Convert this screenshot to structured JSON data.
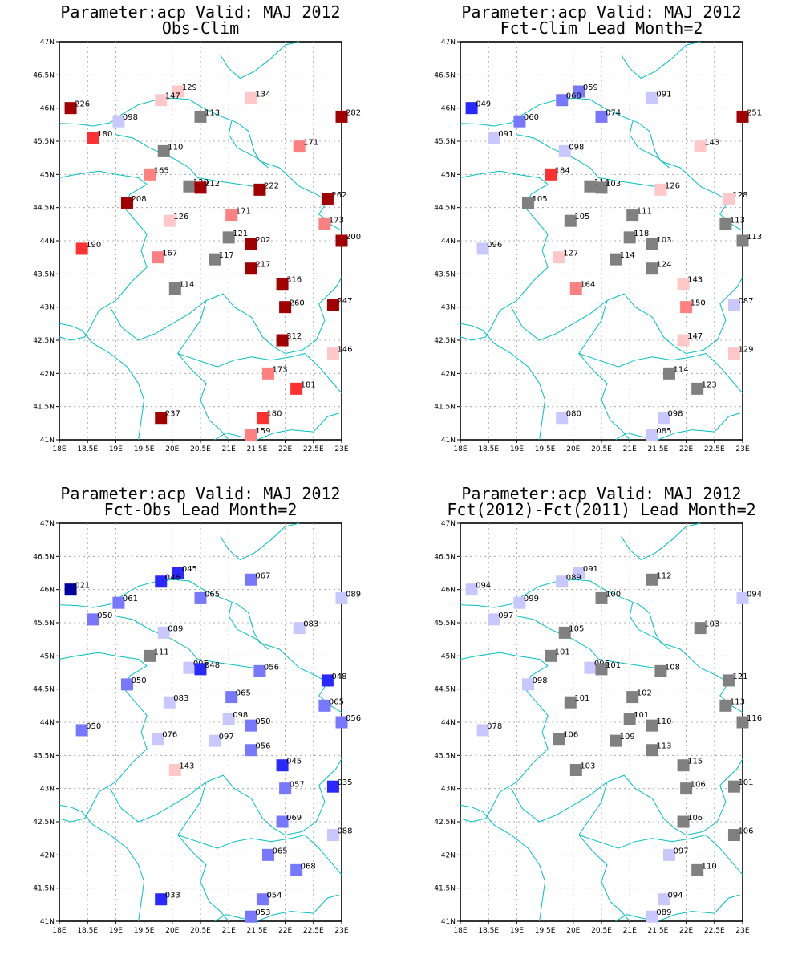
{
  "x_ticks": [
    "18E",
    "18.5E",
    "19E",
    "19.5E",
    "20E",
    "20.5E",
    "21E",
    "21.5E",
    "22E",
    "22.5E",
    "23E"
  ],
  "y_ticks": [
    "41N",
    "41.5N",
    "42N",
    "42.5N",
    "43N",
    "43.5N",
    "44N",
    "44.5N",
    "45N",
    "45.5N",
    "46N",
    "46.5N",
    "47N"
  ],
  "colors": {
    "dark_red": "#a00000",
    "red": "#ff3030",
    "salmon": "#ff8080",
    "pink": "#ffc8c8",
    "gray": "#808080",
    "light_blue": "#c8c8ff",
    "med_blue": "#7878ff",
    "blue": "#2828ff",
    "dark_blue": "#0000a0",
    "coast": "#00c0c0"
  },
  "panels": [
    {
      "title1": "Parameter:acp Valid: MAJ 2012",
      "title2": "Obs-Clim",
      "stations": [
        {
          "lon": 18.2,
          "lat": 46.0,
          "label": "226",
          "color": "dark_red"
        },
        {
          "lon": 18.6,
          "lat": 45.55,
          "label": "180",
          "color": "red"
        },
        {
          "lon": 19.05,
          "lat": 45.8,
          "label": "098",
          "color": "light_blue"
        },
        {
          "lon": 20.1,
          "lat": 46.25,
          "label": "129",
          "color": "pink"
        },
        {
          "lon": 19.8,
          "lat": 46.12,
          "label": "147",
          "color": "pink"
        },
        {
          "lon": 20.5,
          "lat": 45.87,
          "label": "113",
          "color": "gray"
        },
        {
          "lon": 21.4,
          "lat": 46.15,
          "label": "134",
          "color": "pink"
        },
        {
          "lon": 23.0,
          "lat": 45.87,
          "label": "282",
          "color": "dark_red"
        },
        {
          "lon": 19.85,
          "lat": 45.35,
          "label": "110",
          "color": "gray"
        },
        {
          "lon": 22.25,
          "lat": 45.42,
          "label": "171",
          "color": "salmon"
        },
        {
          "lon": 19.6,
          "lat": 45.0,
          "label": "165",
          "color": "salmon"
        },
        {
          "lon": 20.3,
          "lat": 44.82,
          "label": "120",
          "color": "gray"
        },
        {
          "lon": 20.5,
          "lat": 44.8,
          "label": "212",
          "color": "dark_red"
        },
        {
          "lon": 21.55,
          "lat": 44.77,
          "label": "222",
          "color": "dark_red"
        },
        {
          "lon": 22.75,
          "lat": 44.63,
          "label": "262",
          "color": "dark_red"
        },
        {
          "lon": 19.2,
          "lat": 44.57,
          "label": "208",
          "color": "dark_red"
        },
        {
          "lon": 19.95,
          "lat": 44.3,
          "label": "126",
          "color": "pink"
        },
        {
          "lon": 21.05,
          "lat": 44.38,
          "label": "171",
          "color": "salmon"
        },
        {
          "lon": 22.7,
          "lat": 44.25,
          "label": "173",
          "color": "salmon"
        },
        {
          "lon": 21.0,
          "lat": 44.05,
          "label": "121",
          "color": "gray"
        },
        {
          "lon": 21.4,
          "lat": 43.95,
          "label": "202",
          "color": "dark_red"
        },
        {
          "lon": 23.0,
          "lat": 44.0,
          "label": "200",
          "color": "dark_red"
        },
        {
          "lon": 18.4,
          "lat": 43.88,
          "label": "190",
          "color": "red"
        },
        {
          "lon": 19.75,
          "lat": 43.75,
          "label": "167",
          "color": "salmon"
        },
        {
          "lon": 20.75,
          "lat": 43.72,
          "label": "117",
          "color": "gray"
        },
        {
          "lon": 21.4,
          "lat": 43.58,
          "label": "217",
          "color": "dark_red"
        },
        {
          "lon": 21.95,
          "lat": 43.35,
          "label": "316",
          "color": "dark_red"
        },
        {
          "lon": 20.05,
          "lat": 43.28,
          "label": "114",
          "color": "gray"
        },
        {
          "lon": 22.0,
          "lat": 43.0,
          "label": "260",
          "color": "dark_red"
        },
        {
          "lon": 22.85,
          "lat": 43.03,
          "label": "247",
          "color": "dark_red"
        },
        {
          "lon": 21.95,
          "lat": 42.5,
          "label": "312",
          "color": "dark_red"
        },
        {
          "lon": 22.85,
          "lat": 42.3,
          "label": "146",
          "color": "pink"
        },
        {
          "lon": 21.7,
          "lat": 42.0,
          "label": "173",
          "color": "salmon"
        },
        {
          "lon": 22.2,
          "lat": 41.77,
          "label": "181",
          "color": "red"
        },
        {
          "lon": 19.8,
          "lat": 41.33,
          "label": "237",
          "color": "dark_red"
        },
        {
          "lon": 21.6,
          "lat": 41.33,
          "label": "180",
          "color": "red"
        },
        {
          "lon": 21.4,
          "lat": 41.07,
          "label": "159",
          "color": "salmon"
        }
      ]
    },
    {
      "title1": "Parameter:acp Valid: MAJ 2012",
      "title2": "Fct-Clim Lead Month=2",
      "stations": [
        {
          "lon": 18.2,
          "lat": 46.0,
          "label": "049",
          "color": "blue"
        },
        {
          "lon": 19.05,
          "lat": 45.8,
          "label": "060",
          "color": "med_blue"
        },
        {
          "lon": 18.6,
          "lat": 45.55,
          "label": "091",
          "color": "light_blue"
        },
        {
          "lon": 20.1,
          "lat": 46.25,
          "label": "059",
          "color": "med_blue"
        },
        {
          "lon": 19.8,
          "lat": 46.12,
          "label": "068",
          "color": "med_blue"
        },
        {
          "lon": 20.5,
          "lat": 45.87,
          "label": "074",
          "color": "med_blue"
        },
        {
          "lon": 21.4,
          "lat": 46.15,
          "label": "091",
          "color": "light_blue"
        },
        {
          "lon": 23.0,
          "lat": 45.87,
          "label": "251",
          "color": "dark_red"
        },
        {
          "lon": 19.85,
          "lat": 45.35,
          "label": "098",
          "color": "light_blue"
        },
        {
          "lon": 22.25,
          "lat": 45.42,
          "label": "143",
          "color": "pink"
        },
        {
          "lon": 19.6,
          "lat": 45.0,
          "label": "184",
          "color": "red"
        },
        {
          "lon": 20.3,
          "lat": 44.82,
          "label": "114",
          "color": "gray"
        },
        {
          "lon": 20.5,
          "lat": 44.8,
          "label": "103",
          "color": "gray"
        },
        {
          "lon": 21.55,
          "lat": 44.77,
          "label": "126",
          "color": "pink"
        },
        {
          "lon": 22.75,
          "lat": 44.63,
          "label": "128",
          "color": "pink"
        },
        {
          "lon": 19.2,
          "lat": 44.57,
          "label": "105",
          "color": "gray"
        },
        {
          "lon": 19.95,
          "lat": 44.3,
          "label": "105",
          "color": "gray"
        },
        {
          "lon": 21.05,
          "lat": 44.38,
          "label": "111",
          "color": "gray"
        },
        {
          "lon": 22.7,
          "lat": 44.25,
          "label": "113",
          "color": "gray"
        },
        {
          "lon": 21.0,
          "lat": 44.05,
          "label": "118",
          "color": "gray"
        },
        {
          "lon": 21.4,
          "lat": 43.95,
          "label": "103",
          "color": "gray"
        },
        {
          "lon": 23.0,
          "lat": 44.0,
          "label": "113",
          "color": "gray"
        },
        {
          "lon": 18.4,
          "lat": 43.88,
          "label": "096",
          "color": "light_blue"
        },
        {
          "lon": 19.75,
          "lat": 43.75,
          "label": "127",
          "color": "pink"
        },
        {
          "lon": 20.75,
          "lat": 43.72,
          "label": "114",
          "color": "gray"
        },
        {
          "lon": 21.4,
          "lat": 43.58,
          "label": "124",
          "color": "gray"
        },
        {
          "lon": 21.95,
          "lat": 43.35,
          "label": "143",
          "color": "pink"
        },
        {
          "lon": 20.05,
          "lat": 43.28,
          "label": "164",
          "color": "salmon"
        },
        {
          "lon": 22.0,
          "lat": 43.0,
          "label": "150",
          "color": "salmon"
        },
        {
          "lon": 22.85,
          "lat": 43.03,
          "label": "087",
          "color": "light_blue"
        },
        {
          "lon": 21.95,
          "lat": 42.5,
          "label": "147",
          "color": "pink"
        },
        {
          "lon": 22.85,
          "lat": 42.3,
          "label": "129",
          "color": "pink"
        },
        {
          "lon": 21.7,
          "lat": 42.0,
          "label": "114",
          "color": "gray"
        },
        {
          "lon": 22.2,
          "lat": 41.77,
          "label": "123",
          "color": "gray"
        },
        {
          "lon": 19.8,
          "lat": 41.33,
          "label": "080",
          "color": "light_blue"
        },
        {
          "lon": 21.6,
          "lat": 41.33,
          "label": "098",
          "color": "light_blue"
        },
        {
          "lon": 21.4,
          "lat": 41.07,
          "label": "085",
          "color": "light_blue"
        }
      ]
    },
    {
      "title1": "Parameter:acp Valid: MAJ 2012",
      "title2": "Fct-Obs Lead Month=2",
      "stations": [
        {
          "lon": 18.2,
          "lat": 46.0,
          "label": "021",
          "color": "dark_blue"
        },
        {
          "lon": 19.05,
          "lat": 45.8,
          "label": "061",
          "color": "med_blue"
        },
        {
          "lon": 18.6,
          "lat": 45.55,
          "label": "050",
          "color": "med_blue"
        },
        {
          "lon": 20.1,
          "lat": 46.25,
          "label": "045",
          "color": "blue"
        },
        {
          "lon": 19.8,
          "lat": 46.12,
          "label": "046",
          "color": "blue"
        },
        {
          "lon": 20.5,
          "lat": 45.87,
          "label": "065",
          "color": "med_blue"
        },
        {
          "lon": 21.4,
          "lat": 46.15,
          "label": "067",
          "color": "med_blue"
        },
        {
          "lon": 23.0,
          "lat": 45.87,
          "label": "089",
          "color": "light_blue"
        },
        {
          "lon": 19.85,
          "lat": 45.35,
          "label": "089",
          "color": "light_blue"
        },
        {
          "lon": 22.25,
          "lat": 45.42,
          "label": "083",
          "color": "light_blue"
        },
        {
          "lon": 19.6,
          "lat": 45.0,
          "label": "111",
          "color": "gray"
        },
        {
          "lon": 20.3,
          "lat": 44.82,
          "label": "095",
          "color": "light_blue"
        },
        {
          "lon": 20.5,
          "lat": 44.8,
          "label": "048",
          "color": "blue"
        },
        {
          "lon": 21.55,
          "lat": 44.77,
          "label": "056",
          "color": "med_blue"
        },
        {
          "lon": 22.75,
          "lat": 44.63,
          "label": "048",
          "color": "blue"
        },
        {
          "lon": 19.2,
          "lat": 44.57,
          "label": "050",
          "color": "med_blue"
        },
        {
          "lon": 19.95,
          "lat": 44.3,
          "label": "083",
          "color": "light_blue"
        },
        {
          "lon": 21.05,
          "lat": 44.38,
          "label": "065",
          "color": "med_blue"
        },
        {
          "lon": 22.7,
          "lat": 44.25,
          "label": "065",
          "color": "med_blue"
        },
        {
          "lon": 21.0,
          "lat": 44.05,
          "label": "098",
          "color": "light_blue"
        },
        {
          "lon": 21.4,
          "lat": 43.95,
          "label": "050",
          "color": "med_blue"
        },
        {
          "lon": 23.0,
          "lat": 44.0,
          "label": "056",
          "color": "med_blue"
        },
        {
          "lon": 18.4,
          "lat": 43.88,
          "label": "050",
          "color": "med_blue"
        },
        {
          "lon": 19.75,
          "lat": 43.75,
          "label": "076",
          "color": "light_blue"
        },
        {
          "lon": 20.75,
          "lat": 43.72,
          "label": "097",
          "color": "light_blue"
        },
        {
          "lon": 21.4,
          "lat": 43.58,
          "label": "056",
          "color": "med_blue"
        },
        {
          "lon": 21.95,
          "lat": 43.35,
          "label": "045",
          "color": "blue"
        },
        {
          "lon": 20.05,
          "lat": 43.28,
          "label": "143",
          "color": "pink"
        },
        {
          "lon": 22.0,
          "lat": 43.0,
          "label": "057",
          "color": "med_blue"
        },
        {
          "lon": 22.85,
          "lat": 43.03,
          "label": "035",
          "color": "blue"
        },
        {
          "lon": 21.95,
          "lat": 42.5,
          "label": "069",
          "color": "med_blue"
        },
        {
          "lon": 22.85,
          "lat": 42.3,
          "label": "088",
          "color": "light_blue"
        },
        {
          "lon": 21.7,
          "lat": 42.0,
          "label": "065",
          "color": "med_blue"
        },
        {
          "lon": 22.2,
          "lat": 41.77,
          "label": "068",
          "color": "med_blue"
        },
        {
          "lon": 19.8,
          "lat": 41.33,
          "label": "033",
          "color": "blue"
        },
        {
          "lon": 21.6,
          "lat": 41.33,
          "label": "054",
          "color": "med_blue"
        },
        {
          "lon": 21.4,
          "lat": 41.07,
          "label": "053",
          "color": "med_blue"
        }
      ]
    },
    {
      "title1": "Parameter:acp Valid: MAJ 2012",
      "title2": "Fct(2012)-Fct(2011) Lead Month=2",
      "stations": [
        {
          "lon": 18.2,
          "lat": 46.0,
          "label": "094",
          "color": "light_blue"
        },
        {
          "lon": 19.05,
          "lat": 45.8,
          "label": "099",
          "color": "light_blue"
        },
        {
          "lon": 18.6,
          "lat": 45.55,
          "label": "097",
          "color": "light_blue"
        },
        {
          "lon": 20.1,
          "lat": 46.25,
          "label": "091",
          "color": "light_blue"
        },
        {
          "lon": 19.8,
          "lat": 46.12,
          "label": "089",
          "color": "light_blue"
        },
        {
          "lon": 20.5,
          "lat": 45.87,
          "label": "100",
          "color": "gray"
        },
        {
          "lon": 21.4,
          "lat": 46.15,
          "label": "112",
          "color": "gray"
        },
        {
          "lon": 23.0,
          "lat": 45.87,
          "label": "094",
          "color": "light_blue"
        },
        {
          "lon": 19.85,
          "lat": 45.35,
          "label": "105",
          "color": "gray"
        },
        {
          "lon": 22.25,
          "lat": 45.42,
          "label": "103",
          "color": "gray"
        },
        {
          "lon": 19.6,
          "lat": 45.0,
          "label": "101",
          "color": "gray"
        },
        {
          "lon": 20.3,
          "lat": 44.82,
          "label": "096",
          "color": "light_blue"
        },
        {
          "lon": 20.5,
          "lat": 44.8,
          "label": "101",
          "color": "gray"
        },
        {
          "lon": 21.55,
          "lat": 44.77,
          "label": "108",
          "color": "gray"
        },
        {
          "lon": 22.75,
          "lat": 44.63,
          "label": "121",
          "color": "gray"
        },
        {
          "lon": 19.2,
          "lat": 44.57,
          "label": "098",
          "color": "light_blue"
        },
        {
          "lon": 19.95,
          "lat": 44.3,
          "label": "101",
          "color": "gray"
        },
        {
          "lon": 21.05,
          "lat": 44.38,
          "label": "102",
          "color": "gray"
        },
        {
          "lon": 22.7,
          "lat": 44.25,
          "label": "113",
          "color": "gray"
        },
        {
          "lon": 21.0,
          "lat": 44.05,
          "label": "101",
          "color": "gray"
        },
        {
          "lon": 21.4,
          "lat": 43.95,
          "label": "110",
          "color": "gray"
        },
        {
          "lon": 23.0,
          "lat": 44.0,
          "label": "116",
          "color": "gray"
        },
        {
          "lon": 18.4,
          "lat": 43.88,
          "label": "078",
          "color": "light_blue"
        },
        {
          "lon": 19.75,
          "lat": 43.75,
          "label": "106",
          "color": "gray"
        },
        {
          "lon": 20.75,
          "lat": 43.72,
          "label": "109",
          "color": "gray"
        },
        {
          "lon": 21.4,
          "lat": 43.58,
          "label": "113",
          "color": "gray"
        },
        {
          "lon": 21.95,
          "lat": 43.35,
          "label": "115",
          "color": "gray"
        },
        {
          "lon": 20.05,
          "lat": 43.28,
          "label": "103",
          "color": "gray"
        },
        {
          "lon": 22.0,
          "lat": 43.0,
          "label": "106",
          "color": "gray"
        },
        {
          "lon": 22.85,
          "lat": 43.03,
          "label": "101",
          "color": "gray"
        },
        {
          "lon": 21.95,
          "lat": 42.5,
          "label": "106",
          "color": "gray"
        },
        {
          "lon": 22.85,
          "lat": 42.3,
          "label": "106",
          "color": "gray"
        },
        {
          "lon": 21.7,
          "lat": 42.0,
          "label": "097",
          "color": "light_blue"
        },
        {
          "lon": 22.2,
          "lat": 41.77,
          "label": "110",
          "color": "gray"
        },
        {
          "lon": 21.6,
          "lat": 41.33,
          "label": "094",
          "color": "light_blue"
        },
        {
          "lon": 21.4,
          "lat": 41.07,
          "label": "089",
          "color": "light_blue"
        }
      ]
    }
  ]
}
